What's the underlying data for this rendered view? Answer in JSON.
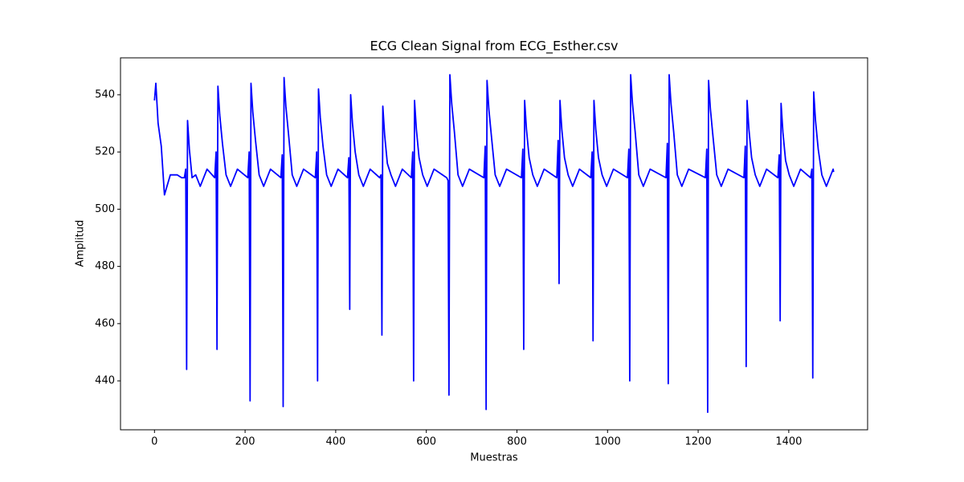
{
  "chart_data": {
    "type": "line",
    "title": "ECG Clean Signal from ECG_Esther.csv",
    "x_label": "Muestras",
    "y_label": "Amplitud",
    "xlim": [
      -75,
      1574
    ],
    "ylim": [
      422.9,
      552.9
    ],
    "xticks": [
      0,
      200,
      400,
      600,
      800,
      1000,
      1200,
      1400
    ],
    "yticks": [
      440,
      460,
      480,
      500,
      520,
      540
    ],
    "grid": false,
    "x": [
      0,
      3,
      8,
      15,
      22,
      35,
      50,
      60,
      66,
      69,
      71,
      73,
      77,
      83,
      91,
      101,
      116,
      133,
      136,
      138,
      140,
      144,
      150,
      158,
      168,
      183,
      206,
      209,
      211,
      213,
      217,
      223,
      231,
      241,
      256,
      279,
      282,
      284,
      286,
      290,
      296,
      304,
      314,
      329,
      355,
      358,
      360,
      362,
      366,
      372,
      380,
      390,
      405,
      426,
      429,
      431,
      433,
      437,
      443,
      451,
      461,
      476,
      497,
      500,
      502,
      504,
      508,
      514,
      522,
      532,
      547,
      567,
      570,
      572,
      574,
      578,
      584,
      592,
      602,
      617,
      645,
      648,
      650,
      652,
      656,
      662,
      670,
      680,
      695,
      727,
      730,
      732,
      734,
      738,
      744,
      752,
      762,
      777,
      810,
      813,
      815,
      817,
      821,
      827,
      835,
      845,
      860,
      888,
      891,
      893,
      895,
      899,
      905,
      913,
      923,
      938,
      963,
      966,
      968,
      970,
      974,
      980,
      988,
      998,
      1013,
      1044,
      1047,
      1049,
      1051,
      1055,
      1061,
      1069,
      1079,
      1094,
      1129,
      1132,
      1134,
      1136,
      1140,
      1146,
      1154,
      1164,
      1179,
      1216,
      1219,
      1221,
      1223,
      1227,
      1233,
      1241,
      1251,
      1266,
      1301,
      1304,
      1306,
      1308,
      1312,
      1318,
      1326,
      1336,
      1351,
      1376,
      1379,
      1381,
      1383,
      1387,
      1393,
      1401,
      1411,
      1426,
      1448,
      1451,
      1453,
      1455,
      1459,
      1465,
      1473,
      1483,
      1498,
      1499
    ],
    "series": [
      {
        "color": "#0000ff",
        "values": [
          538,
          544,
          530,
          522,
          505,
          512,
          512,
          511,
          511,
          514,
          444,
          531,
          521,
          511,
          512,
          508,
          514,
          511,
          520,
          451,
          543,
          533,
          523,
          512,
          508,
          514,
          511,
          520,
          433,
          544,
          534,
          524,
          512,
          508,
          514,
          511,
          519,
          431,
          546,
          536,
          526,
          512,
          508,
          514,
          511,
          520,
          440,
          542,
          532,
          522,
          512,
          508,
          514,
          511,
          518,
          465,
          540,
          530,
          520,
          512,
          508,
          514,
          511,
          512,
          456,
          536,
          526,
          516,
          512,
          508,
          514,
          511,
          520,
          440,
          538,
          528,
          518,
          512,
          508,
          514,
          511,
          510,
          435,
          547,
          537,
          527,
          512,
          508,
          514,
          511,
          522,
          430,
          545,
          535,
          525,
          512,
          508,
          514,
          511,
          521,
          451,
          538,
          528,
          518,
          512,
          508,
          514,
          511,
          524,
          474,
          538,
          528,
          518,
          512,
          508,
          514,
          511,
          520,
          454,
          538,
          528,
          518,
          512,
          508,
          514,
          511,
          521,
          440,
          547,
          537,
          527,
          512,
          508,
          514,
          511,
          523,
          439,
          547,
          537,
          527,
          512,
          508,
          514,
          511,
          521,
          429,
          545,
          535,
          525,
          512,
          508,
          514,
          511,
          522,
          445,
          538,
          528,
          518,
          512,
          508,
          514,
          511,
          519,
          461,
          537,
          527,
          517,
          512,
          508,
          514,
          511,
          514,
          441,
          541,
          531,
          521,
          512,
          508,
          514,
          513
        ]
      }
    ]
  }
}
